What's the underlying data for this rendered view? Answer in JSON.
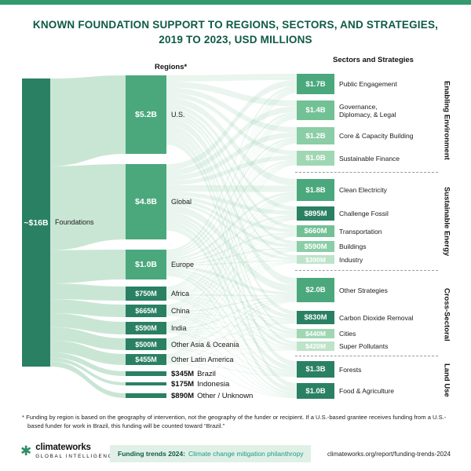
{
  "title": {
    "line1": "KNOWN FOUNDATION SUPPORT TO REGIONS, SECTORS, AND STRATEGIES,",
    "line2": "2019 TO 2023, USD MILLIONS"
  },
  "headers": {
    "regions": "Regions*",
    "sectors": "Sectors and Strategies"
  },
  "chart_data": {
    "type": "sankey",
    "title": "Known Foundation Support to Regions, Sectors, and Strategies, 2019 to 2023, USD Millions",
    "source": {
      "value": "~$16B",
      "label": "Foundations"
    },
    "regions": [
      {
        "value": "$5.2B",
        "label": "U.S."
      },
      {
        "value": "$4.8B",
        "label": "Global"
      },
      {
        "value": "$1.0B",
        "label": "Europe"
      },
      {
        "value": "$750M",
        "label": "Africa"
      },
      {
        "value": "$665M",
        "label": "China"
      },
      {
        "value": "$590M",
        "label": "India"
      },
      {
        "value": "$500M",
        "label": "Other Asia & Oceania"
      },
      {
        "value": "$455M",
        "label": "Other Latin America"
      },
      {
        "value": "$345M",
        "label": "Brazil"
      },
      {
        "value": "$175M",
        "label": "Indonesia"
      },
      {
        "value": "$890M",
        "label": "Other / Unknown"
      }
    ],
    "sectors": [
      {
        "value": "$1.7B",
        "label": "Public Engagement",
        "group": "Enabling Environment"
      },
      {
        "value": "$1.4B",
        "label": "Governance, Diplomacy, & Legal",
        "group": "Enabling Environment"
      },
      {
        "value": "$1.2B",
        "label": "Core & Capacity Building",
        "group": "Enabling Environment"
      },
      {
        "value": "$1.0B",
        "label": "Sustainable Finance",
        "group": "Enabling Environment"
      },
      {
        "value": "$1.8B",
        "label": "Clean Electricity",
        "group": "Sustainable Energy"
      },
      {
        "value": "$895M",
        "label": "Challenge Fossil",
        "group": "Sustainable Energy"
      },
      {
        "value": "$660M",
        "label": "Transportation",
        "group": "Sustainable Energy"
      },
      {
        "value": "$590M",
        "label": "Buildings",
        "group": "Sustainable Energy"
      },
      {
        "value": "$390M",
        "label": "Industry",
        "group": "Sustainable Energy"
      },
      {
        "value": "$2.0B",
        "label": "Other Strategies",
        "group": "Cross-Sectoral"
      },
      {
        "value": "$830M",
        "label": "Carbon Dioxide Removal",
        "group": "Cross-Sectoral"
      },
      {
        "value": "$440M",
        "label": "Cities",
        "group": "Cross-Sectoral"
      },
      {
        "value": "$420M",
        "label": "Super Pollutants",
        "group": "Cross-Sectoral"
      },
      {
        "value": "$1.3B",
        "label": "Forests",
        "group": "Land Use"
      },
      {
        "value": "$1.0B",
        "label": "Food & Agriculture",
        "group": "Land Use"
      }
    ],
    "group_labels": [
      "Enabling Environment",
      "Sustainable Energy",
      "Cross-Sectoral",
      "Land Use"
    ]
  },
  "footnote": "*   Funding by region is based on the geography of intervention, not the geography of the funder or recipient. If a U.S.-based grantee receives funding from a U.S.-based funder for work in Brazil, this funding will be counted toward “Brazil.”",
  "footer": {
    "brand": "climateworks",
    "brand_sub": "GLOBAL INTELLIGENCE",
    "report_label": "Funding trends 2024:",
    "report_title": "Climate change mitigation philanthropy",
    "url": "climateworks.org/report/funding-trends-2024"
  },
  "icons": {
    "brand_logo": "climateworks-flower-icon"
  },
  "colors": {
    "accent_bar_green": "#35996f",
    "title_green": "#0e5a45",
    "node_dark_green": "#2a8063",
    "node_medium_green": "#4aa87c",
    "flow_light_green": "#c3e3cf",
    "report_band_green": "#e0f0e7",
    "link_teal": "#1d9a83"
  }
}
